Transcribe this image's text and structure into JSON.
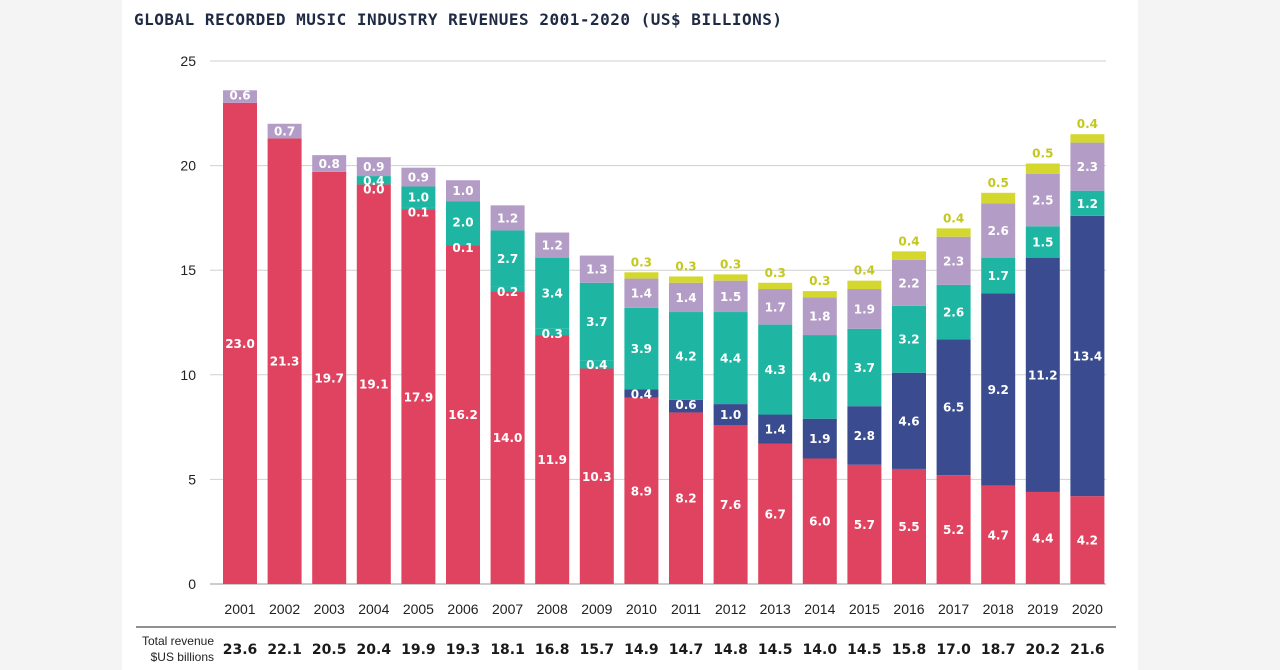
{
  "chart_data": {
    "type": "bar",
    "stacked": true,
    "title": "GLOBAL RECORDED MUSIC INDUSTRY REVENUES 2001-2020 (US$ BILLIONS)",
    "categories": [
      "2001",
      "2002",
      "2003",
      "2004",
      "2005",
      "2006",
      "2007",
      "2008",
      "2009",
      "2010",
      "2011",
      "2012",
      "2013",
      "2014",
      "2015",
      "2016",
      "2017",
      "2018",
      "2019",
      "2020"
    ],
    "ylim": [
      0,
      25
    ],
    "yticks": [
      "0",
      "5",
      "10",
      "15",
      "20",
      "25"
    ],
    "grid": true,
    "series": [
      {
        "color": "#e0435f",
        "labels": [
          "23.0",
          "21.3",
          "19.7",
          "19.1",
          "17.9",
          "16.2",
          "14.0",
          "11.9",
          "10.3",
          "8.9",
          "8.2",
          "7.6",
          "6.7",
          "6.0",
          "5.7",
          "5.5",
          "5.2",
          "4.7",
          "4.4",
          "4.2"
        ],
        "values": [
          23.0,
          21.3,
          19.7,
          19.1,
          17.9,
          16.2,
          14.0,
          11.9,
          10.3,
          8.9,
          8.2,
          7.6,
          6.7,
          6.0,
          5.7,
          5.5,
          5.2,
          4.7,
          4.4,
          4.2
        ]
      },
      {
        "color": "#3a4c8f",
        "labels": [
          "",
          "",
          "",
          "",
          "",
          "",
          "",
          "",
          "",
          "0.4",
          "0.6",
          "1.0",
          "1.4",
          "1.9",
          "2.8",
          "4.6",
          "6.5",
          "9.2",
          "11.2",
          "13.4"
        ],
        "values": [
          0,
          0,
          0,
          0,
          0,
          0,
          0,
          0,
          0,
          0.4,
          0.6,
          1.0,
          1.4,
          1.9,
          2.8,
          4.6,
          6.5,
          9.2,
          11.2,
          13.4
        ]
      },
      {
        "color": "#1fb5a3",
        "labels": [
          "",
          "",
          "",
          "0.0",
          "0.1",
          "0.1",
          "0.2",
          "0.3",
          "0.4",
          "",
          "",
          "",
          "",
          "",
          "",
          "",
          "",
          "",
          "",
          ""
        ],
        "values": [
          0,
          0,
          0,
          0.0,
          0.1,
          0.1,
          0.2,
          0.3,
          0.4,
          0,
          0,
          0,
          0,
          0,
          0,
          0,
          0,
          0,
          0,
          0
        ]
      },
      {
        "color": "#1fb5a3",
        "labels": [
          "",
          "",
          "",
          "0.4",
          "1.0",
          "2.0",
          "2.7",
          "3.4",
          "3.7",
          "3.9",
          "4.2",
          "4.4",
          "4.3",
          "4.0",
          "3.7",
          "3.2",
          "2.6",
          "1.7",
          "1.5",
          "1.2"
        ],
        "values": [
          0,
          0,
          0,
          0.4,
          1.0,
          2.0,
          2.7,
          3.4,
          3.7,
          3.9,
          4.2,
          4.4,
          4.3,
          4.0,
          3.7,
          3.2,
          2.6,
          1.7,
          1.5,
          1.2
        ]
      },
      {
        "color": "#b39cc6",
        "labels": [
          "0.6",
          "0.7",
          "0.8",
          "0.9",
          "0.9",
          "1.0",
          "1.2",
          "1.2",
          "1.3",
          "1.4",
          "1.4",
          "1.5",
          "1.7",
          "1.8",
          "1.9",
          "2.2",
          "2.3",
          "2.6",
          "2.5",
          "2.3"
        ],
        "values": [
          0.6,
          0.7,
          0.8,
          0.9,
          0.9,
          1.0,
          1.2,
          1.2,
          1.3,
          1.4,
          1.4,
          1.5,
          1.7,
          1.8,
          1.9,
          2.2,
          2.3,
          2.6,
          2.5,
          2.3
        ]
      },
      {
        "color": "#d4d82e",
        "labels": [
          "",
          "",
          "",
          "",
          "",
          "",
          "",
          "",
          "",
          "0.3",
          "0.3",
          "0.3",
          "0.3",
          "0.3",
          "0.4",
          "0.4",
          "0.4",
          "0.5",
          "0.5",
          "0.4"
        ],
        "values": [
          0,
          0,
          0,
          0,
          0,
          0,
          0,
          0,
          0,
          0.3,
          0.3,
          0.3,
          0.3,
          0.3,
          0.4,
          0.4,
          0.4,
          0.5,
          0.5,
          0.4
        ]
      }
    ],
    "totals_caption": [
      "Total revenue",
      "$US billions"
    ],
    "totals": [
      "23.6",
      "22.1",
      "20.5",
      "20.4",
      "19.9",
      "19.3",
      "18.1",
      "16.8",
      "15.7",
      "14.9",
      "14.7",
      "14.8",
      "14.5",
      "14.0",
      "14.5",
      "15.8",
      "17.0",
      "18.7",
      "20.2",
      "21.6"
    ]
  }
}
